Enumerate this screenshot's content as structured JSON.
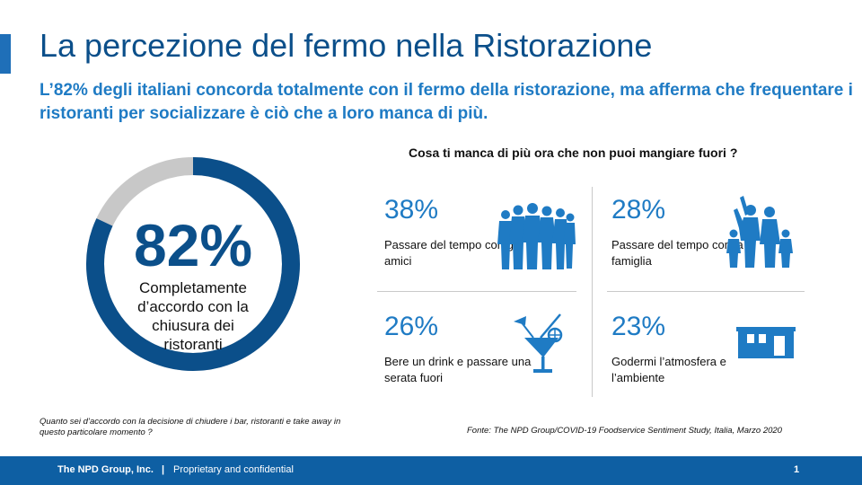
{
  "slide": {
    "title": "La percezione del fermo nella Ristorazione",
    "subtitle": "L’82% degli italiani concorda totalmente con il fermo della ristorazione, ma afferma che frequentare i ristoranti per socializzare è ciò che a loro manca di più."
  },
  "donut": {
    "value_label": "82%",
    "value_fraction": 0.82,
    "label": "Completamente d’accordo con la chiusura dei ristoranti",
    "color_primary": "#0b4f8a",
    "color_rest": "#c8c8c8"
  },
  "question": "Cosa ti manca di più ora che non puoi mangiare fuori ?",
  "stats": [
    {
      "pct": "38%",
      "text": "Passare del tempo con gli amici",
      "icon": "group-of-friends-icon"
    },
    {
      "pct": "28%",
      "text": "Passare del tempo con la famiglia",
      "icon": "family-icon"
    },
    {
      "pct": "26%",
      "text": "Bere un drink e passare una serata fuori",
      "icon": "cocktail-icon"
    },
    {
      "pct": "23%",
      "text": "Godermi  l’atmosfera e l’ambiente",
      "icon": "restaurant-building-icon"
    }
  ],
  "footnote": "Quanto sei d’accordo con la decisione di chiudere i bar, ristoranti e take away in questo particolare momento ?",
  "source": "Fonte: The NPD Group/COVID-19 Foodservice Sentiment Study, Italia, Marzo 2020",
  "footer": {
    "company": "The NPD Group, Inc.",
    "separator": "|",
    "confidential": "Proprietary and confidential",
    "page": "1"
  },
  "colors": {
    "brand_dark": "#0b4f8a",
    "brand_light": "#1f7bc4",
    "footer_bg": "#0e5fa3"
  }
}
